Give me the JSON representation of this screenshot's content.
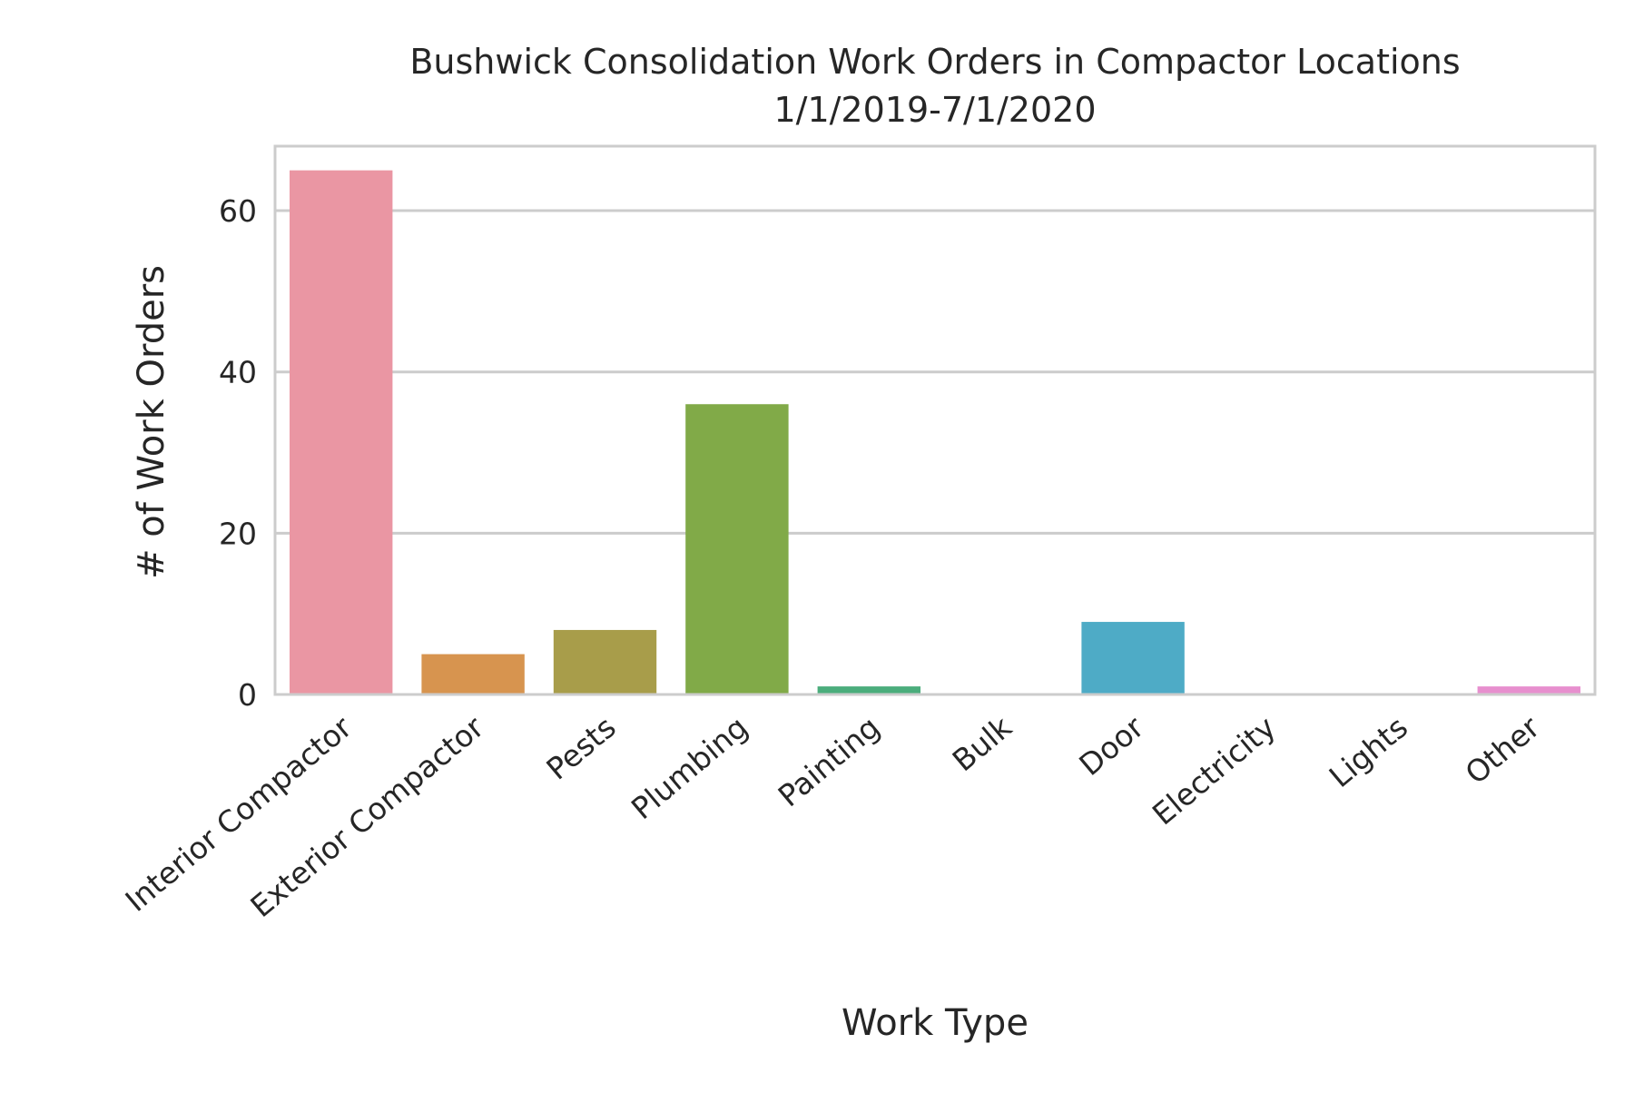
{
  "chart_data": {
    "type": "bar",
    "title": "Bushwick Consolidation Work Orders in Compactor Locations",
    "subtitle": "1/1/2019-7/1/2020",
    "xlabel": "Work Type",
    "ylabel": "# of Work Orders",
    "categories": [
      "Interior Compactor",
      "Exterior Compactor",
      "Pests",
      "Plumbing",
      "Painting",
      "Bulk",
      "Door",
      "Electricity",
      "Lights",
      "Other"
    ],
    "values": [
      65,
      5,
      8,
      36,
      1,
      0,
      9,
      0,
      0,
      1
    ],
    "colors": [
      "#ea96a3",
      "#d7944f",
      "#a89d4a",
      "#81aa48",
      "#4bad7c",
      "#4aa9a0",
      "#4eabc6",
      "#8cadec",
      "#c99ae8",
      "#e78fce"
    ],
    "yticks": [
      0,
      20,
      40,
      60
    ],
    "ylim": [
      0,
      68
    ],
    "grid": true,
    "grid_axis": "y",
    "legend": false
  }
}
